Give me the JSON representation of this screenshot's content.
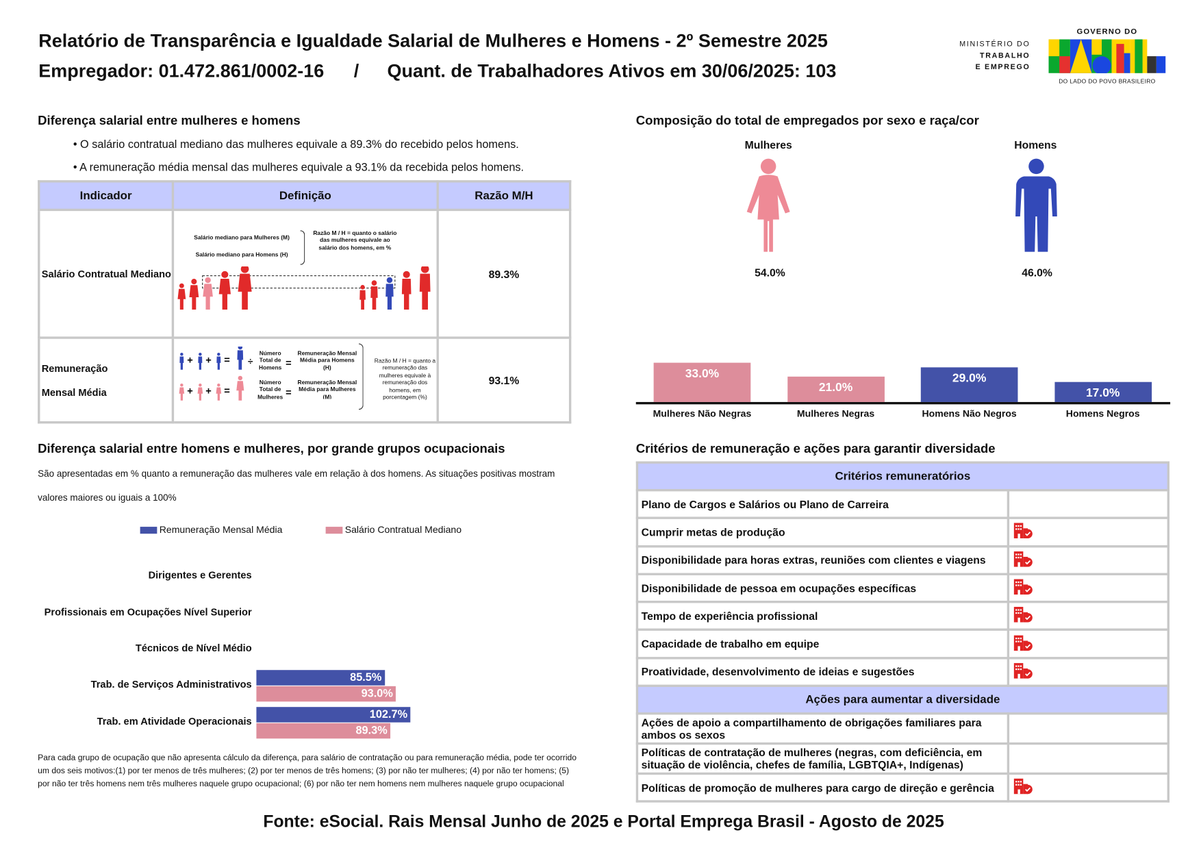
{
  "header": {
    "title": "Relatório de Transparência e Igualdade Salarial de Mulheres e Homens - 2º Semestre 2025",
    "employer": "Empregador: 01.472.861/0002-16",
    "separator": "/",
    "workers": "Quant. de Trabalhadores Ativos em 30/06/2025: 103"
  },
  "logo": {
    "ministry": [
      "MINISTÉRIO DO",
      "TRABALHO",
      "E EMPREGO"
    ],
    "gov_top": "GOVERNO DO",
    "gov_word": "BRASIL",
    "gov_bottom": "DO LADO DO POVO BRASILEIRO"
  },
  "salary_gap": {
    "title": "Diferença salarial entre mulheres e homens",
    "bullets": [
      "• O salário contratual mediano das mulheres equivale a 89.3% do recebido pelos homens.",
      "• A remuneração média mensal das mulheres equivale a 93.1% da recebida pelos homens."
    ],
    "headers": [
      "Indicador",
      "Definição",
      "Razão M/H"
    ],
    "rows": [
      {
        "indicator": "Salário Contratual Mediano",
        "ratio": "89.3%",
        "def": {
          "m": "Salário mediano para Mulheres (M)",
          "h": "Salário mediano para Homens (H)",
          "note": "Razão M / H = quanto o salário das mulheres equivale ao salário dos homens, em %"
        }
      },
      {
        "indicator": "Remuneração Mensal Média",
        "ratio": "93.1%",
        "def": {
          "h_div": "Número Total de Homens",
          "h_res": "Remuneração Mensal Média para Homens (H)",
          "m_div": "Número Total de Mulheres",
          "m_res": "Remuneração Mensal Média para Mulheres (M)",
          "note": "Razão M / H = quanto a remuneração das mulheres equivale à remuneração dos homens, em porcentagem (%)"
        }
      }
    ]
  },
  "composition": {
    "title": "Composição do total de empregados por sexo e raça/cor",
    "women_label": "Mulheres",
    "men_label": "Homens",
    "women_pct": "54.0%",
    "men_pct": "46.0%",
    "colors": {
      "women": "#e28d9b",
      "men": "#4152a8"
    }
  },
  "chart_data": [
    {
      "type": "bar",
      "categories": [
        "Mulheres Não Negras",
        "Mulheres Negras",
        "Homens Não Negros",
        "Homens Negros"
      ],
      "values": [
        33.0,
        21.0,
        29.0,
        17.0
      ],
      "labels": [
        "33.0%",
        "21.0%",
        "29.0%",
        "17.0%"
      ],
      "colors": [
        "#dd8d9b",
        "#dd8d9b",
        "#4352a8",
        "#4352a8"
      ]
    },
    {
      "type": "bar",
      "orientation": "horizontal",
      "title": "Diferença salarial entre homens e mulheres, por grande grupos ocupacionais",
      "categories": [
        "Dirigentes e Gerentes",
        "Profissionais em Ocupações Nível Superior",
        "Técnicos de Nível Médio",
        "Trab. de Serviços Administrativos",
        "Trab. em Atividade Operacionais"
      ],
      "series": [
        {
          "name": "Remuneração Mensal Média",
          "color": "#4352a8",
          "values": [
            null,
            null,
            null,
            85.5,
            102.7
          ],
          "labels": [
            "",
            "",
            "",
            "85.5%",
            "102.7%"
          ]
        },
        {
          "name": "Salário Contratual Mediano",
          "color": "#dd8d9b",
          "values": [
            null,
            null,
            null,
            93.0,
            89.3
          ],
          "labels": [
            "",
            "",
            "",
            "93.0%",
            "89.3%"
          ]
        }
      ],
      "legend": "top"
    }
  ],
  "occupational": {
    "intro": "São apresentadas em % quanto a remuneração das mulheres vale em relação à dos homens. As situações positivas mostram valores maiores ou iguais a 100%",
    "footnote": "Para cada grupo de ocupação que não apresenta cálculo da diferença, para salário de contratação ou para remuneração média, pode ter ocorrido um dos seis motivos:(1) por ter menos de três mulheres; (2) por ter menos de três homens; (3) por não ter mulheres; (4) por não ter homens; (5) por não ter três homens nem três mulheres naquele grupo ocupacional; (6) por não ter nem homens nem mulheres naquele grupo ocupacional"
  },
  "criteria": {
    "title": "Critérios de remuneração e ações para garantir diversidade",
    "header1": "Critérios remuneratórios",
    "items": [
      {
        "label": "Plano de Cargos e Salários ou Plano de Carreira",
        "checked": false
      },
      {
        "label": "Cumprir metas de produção",
        "checked": true
      },
      {
        "label": "Disponibilidade para horas extras, reuniões com clientes e viagens",
        "checked": true
      },
      {
        "label": "Disponibilidade de pessoa em ocupações específicas",
        "checked": true
      },
      {
        "label": "Tempo de experiência profissional",
        "checked": true
      },
      {
        "label": "Capacidade de trabalho em equipe",
        "checked": true
      },
      {
        "label": "Proatividade, desenvolvimento de ideias e sugestões",
        "checked": true
      }
    ],
    "header2": "Ações para aumentar a diversidade",
    "actions": [
      {
        "label": "Ações de apoio a compartilhamento de obrigações familiares para ambos os sexos",
        "checked": false
      },
      {
        "label": "Políticas de contratação de mulheres (negras, com deficiência, em situação de violência, chefes de família, LGBTQIA+, Indígenas)",
        "checked": false
      },
      {
        "label": "Políticas de promoção de mulheres para cargo de direção e gerência",
        "checked": true
      }
    ],
    "icon": "building-check-icon",
    "icon_color": "#e02424"
  },
  "footer": "Fonte: eSocial. Rais Mensal Junho de 2025 e Portal Emprega Brasil - Agosto de 2025"
}
